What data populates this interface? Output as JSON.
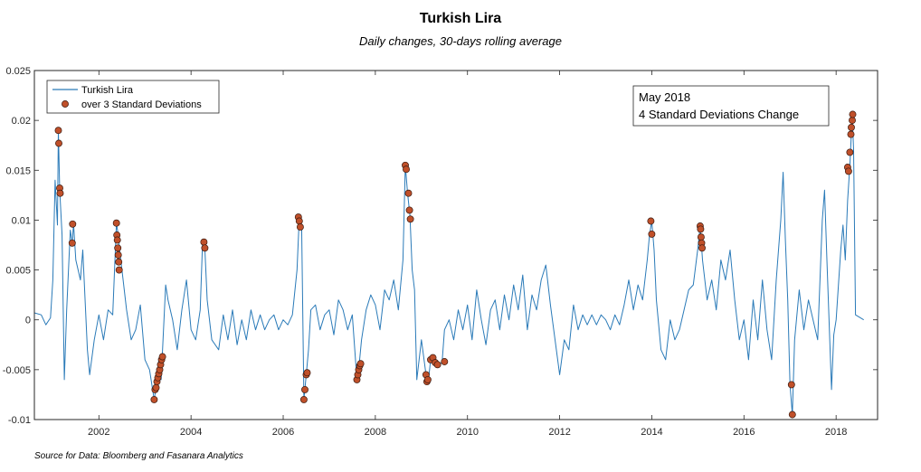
{
  "chart_data": {
    "type": "line",
    "title": "Turkish Lira",
    "subtitle": "Daily changes, 30-days rolling average",
    "source": "Source for Data: Bloomberg and Fasanara Analytics",
    "xlabel": "",
    "ylabel": "",
    "xlim": [
      2000.6,
      2018.9
    ],
    "ylim": [
      -0.01,
      0.025
    ],
    "x_ticks": [
      2002,
      2004,
      2006,
      2008,
      2010,
      2012,
      2014,
      2016,
      2018
    ],
    "y_ticks": [
      -0.01,
      -0.005,
      0,
      0.005,
      0.01,
      0.015,
      0.02,
      0.025
    ],
    "y_tick_labels": [
      "-0.01",
      "-0.005",
      "0",
      "0.005",
      "0.01",
      "0.015",
      "0.02",
      "0.025"
    ],
    "legend_placement": "top-left",
    "annotation": {
      "lines": [
        "May 2018",
        "4 Standard Deviations Change"
      ],
      "placement": "top-right"
    },
    "colors": {
      "line": "#2a7ab8",
      "marker_fill": "#c0502a",
      "marker_edge": "#3a1a10",
      "axis": "#262626"
    },
    "series": [
      {
        "name": "Turkish Lira",
        "kind": "line",
        "points": [
          [
            2000.6,
            0.0007
          ],
          [
            2000.75,
            0.0005
          ],
          [
            2000.85,
            -0.0005
          ],
          [
            2000.95,
            0.0002
          ],
          [
            2001.0,
            0.004
          ],
          [
            2001.05,
            0.014
          ],
          [
            2001.1,
            0.0095
          ],
          [
            2001.12,
            0.019
          ],
          [
            2001.15,
            0.013
          ],
          [
            2001.2,
            0.0085
          ],
          [
            2001.25,
            -0.006
          ],
          [
            2001.3,
            0.001
          ],
          [
            2001.38,
            0.009
          ],
          [
            2001.42,
            0.0077
          ],
          [
            2001.45,
            0.0096
          ],
          [
            2001.5,
            0.006
          ],
          [
            2001.6,
            0.004
          ],
          [
            2001.65,
            0.007
          ],
          [
            2001.75,
            -0.003
          ],
          [
            2001.8,
            -0.0055
          ],
          [
            2001.9,
            -0.002
          ],
          [
            2002.0,
            0.0005
          ],
          [
            2002.1,
            -0.002
          ],
          [
            2002.2,
            0.001
          ],
          [
            2002.3,
            0.0005
          ],
          [
            2002.38,
            0.0097
          ],
          [
            2002.42,
            0.0085
          ],
          [
            2002.45,
            0.007
          ],
          [
            2002.5,
            0.005
          ],
          [
            2002.6,
            0.001
          ],
          [
            2002.7,
            -0.002
          ],
          [
            2002.8,
            -0.001
          ],
          [
            2002.9,
            0.0015
          ],
          [
            2003.0,
            -0.004
          ],
          [
            2003.1,
            -0.005
          ],
          [
            2003.2,
            -0.008
          ],
          [
            2003.25,
            -0.0065
          ],
          [
            2003.3,
            -0.004
          ],
          [
            2003.35,
            -0.006
          ],
          [
            2003.45,
            0.0035
          ],
          [
            2003.5,
            0.002
          ],
          [
            2003.6,
            0.0
          ],
          [
            2003.7,
            -0.003
          ],
          [
            2003.8,
            0.001
          ],
          [
            2003.9,
            0.004
          ],
          [
            2004.0,
            -0.001
          ],
          [
            2004.1,
            -0.002
          ],
          [
            2004.2,
            0.001
          ],
          [
            2004.25,
            0.0078
          ],
          [
            2004.3,
            0.0072
          ],
          [
            2004.35,
            0.002
          ],
          [
            2004.45,
            -0.002
          ],
          [
            2004.6,
            -0.003
          ],
          [
            2004.7,
            0.0005
          ],
          [
            2004.8,
            -0.002
          ],
          [
            2004.9,
            0.001
          ],
          [
            2005.0,
            -0.0025
          ],
          [
            2005.1,
            0.0
          ],
          [
            2005.2,
            -0.002
          ],
          [
            2005.3,
            0.001
          ],
          [
            2005.4,
            -0.001
          ],
          [
            2005.5,
            0.0005
          ],
          [
            2005.6,
            -0.001
          ],
          [
            2005.7,
            0.0
          ],
          [
            2005.8,
            0.0005
          ],
          [
            2005.9,
            -0.001
          ],
          [
            2006.0,
            0.0
          ],
          [
            2006.1,
            -0.0005
          ],
          [
            2006.2,
            0.0005
          ],
          [
            2006.3,
            0.005
          ],
          [
            2006.35,
            0.0103
          ],
          [
            2006.4,
            0.0095
          ],
          [
            2006.45,
            -0.008
          ],
          [
            2006.5,
            -0.0055
          ],
          [
            2006.55,
            -0.003
          ],
          [
            2006.6,
            0.001
          ],
          [
            2006.7,
            0.0015
          ],
          [
            2006.8,
            -0.001
          ],
          [
            2006.9,
            0.0005
          ],
          [
            2007.0,
            0.001
          ],
          [
            2007.1,
            -0.0015
          ],
          [
            2007.2,
            0.002
          ],
          [
            2007.3,
            0.001
          ],
          [
            2007.4,
            -0.001
          ],
          [
            2007.5,
            0.0005
          ],
          [
            2007.6,
            -0.006
          ],
          [
            2007.65,
            -0.0045
          ],
          [
            2007.7,
            -0.002
          ],
          [
            2007.8,
            0.001
          ],
          [
            2007.9,
            0.0025
          ],
          [
            2008.0,
            0.0015
          ],
          [
            2008.1,
            -0.001
          ],
          [
            2008.2,
            0.003
          ],
          [
            2008.3,
            0.002
          ],
          [
            2008.4,
            0.004
          ],
          [
            2008.5,
            0.001
          ],
          [
            2008.6,
            0.006
          ],
          [
            2008.65,
            0.0155
          ],
          [
            2008.7,
            0.0127
          ],
          [
            2008.75,
            0.0105
          ],
          [
            2008.8,
            0.005
          ],
          [
            2008.85,
            0.003
          ],
          [
            2008.9,
            -0.006
          ],
          [
            2009.0,
            -0.002
          ],
          [
            2009.1,
            -0.0055
          ],
          [
            2009.15,
            -0.0062
          ],
          [
            2009.2,
            -0.004
          ],
          [
            2009.3,
            -0.0045
          ],
          [
            2009.4,
            -0.0045
          ],
          [
            2009.45,
            -0.0042
          ],
          [
            2009.5,
            -0.001
          ],
          [
            2009.6,
            0.0
          ],
          [
            2009.7,
            -0.002
          ],
          [
            2009.8,
            0.001
          ],
          [
            2009.9,
            -0.001
          ],
          [
            2010.0,
            0.0015
          ],
          [
            2010.1,
            -0.002
          ],
          [
            2010.2,
            0.003
          ],
          [
            2010.3,
            0.0
          ],
          [
            2010.4,
            -0.0025
          ],
          [
            2010.5,
            0.001
          ],
          [
            2010.6,
            0.002
          ],
          [
            2010.7,
            -0.001
          ],
          [
            2010.8,
            0.0025
          ],
          [
            2010.9,
            0.0
          ],
          [
            2011.0,
            0.0035
          ],
          [
            2011.1,
            0.001
          ],
          [
            2011.2,
            0.0045
          ],
          [
            2011.3,
            -0.001
          ],
          [
            2011.4,
            0.0025
          ],
          [
            2011.5,
            0.001
          ],
          [
            2011.6,
            0.004
          ],
          [
            2011.7,
            0.0055
          ],
          [
            2011.8,
            0.0015
          ],
          [
            2011.9,
            -0.002
          ],
          [
            2012.0,
            -0.0055
          ],
          [
            2012.1,
            -0.002
          ],
          [
            2012.2,
            -0.003
          ],
          [
            2012.3,
            0.0015
          ],
          [
            2012.4,
            -0.001
          ],
          [
            2012.5,
            0.0005
          ],
          [
            2012.6,
            -0.0005
          ],
          [
            2012.7,
            0.0005
          ],
          [
            2012.8,
            -0.0005
          ],
          [
            2012.9,
            0.0005
          ],
          [
            2013.0,
            0.0
          ],
          [
            2013.1,
            -0.001
          ],
          [
            2013.2,
            0.0005
          ],
          [
            2013.3,
            -0.0005
          ],
          [
            2013.4,
            0.0015
          ],
          [
            2013.5,
            0.004
          ],
          [
            2013.6,
            0.001
          ],
          [
            2013.7,
            0.0035
          ],
          [
            2013.8,
            0.002
          ],
          [
            2013.9,
            0.006
          ],
          [
            2013.95,
            0.0085
          ],
          [
            2014.0,
            0.0099
          ],
          [
            2014.05,
            0.007
          ],
          [
            2014.1,
            0.002
          ],
          [
            2014.2,
            -0.003
          ],
          [
            2014.3,
            -0.004
          ],
          [
            2014.4,
            0.0
          ],
          [
            2014.5,
            -0.002
          ],
          [
            2014.6,
            -0.001
          ],
          [
            2014.7,
            0.001
          ],
          [
            2014.8,
            0.003
          ],
          [
            2014.9,
            0.0035
          ],
          [
            2015.0,
            0.0072
          ],
          [
            2015.05,
            0.0094
          ],
          [
            2015.1,
            0.006
          ],
          [
            2015.2,
            0.002
          ],
          [
            2015.3,
            0.004
          ],
          [
            2015.4,
            0.001
          ],
          [
            2015.5,
            0.006
          ],
          [
            2015.6,
            0.004
          ],
          [
            2015.7,
            0.007
          ],
          [
            2015.8,
            0.002
          ],
          [
            2015.9,
            -0.002
          ],
          [
            2016.0,
            0.0
          ],
          [
            2016.1,
            -0.004
          ],
          [
            2016.2,
            0.002
          ],
          [
            2016.3,
            -0.002
          ],
          [
            2016.4,
            0.004
          ],
          [
            2016.5,
            -0.001
          ],
          [
            2016.6,
            -0.004
          ],
          [
            2016.7,
            0.004
          ],
          [
            2016.8,
            0.01
          ],
          [
            2016.85,
            0.0148
          ],
          [
            2016.9,
            0.008
          ],
          [
            2016.95,
            0.002
          ],
          [
            2017.0,
            -0.0065
          ],
          [
            2017.05,
            -0.0095
          ],
          [
            2017.1,
            -0.002
          ],
          [
            2017.2,
            0.003
          ],
          [
            2017.3,
            -0.001
          ],
          [
            2017.4,
            0.002
          ],
          [
            2017.5,
            0.0
          ],
          [
            2017.6,
            -0.002
          ],
          [
            2017.7,
            0.01
          ],
          [
            2017.75,
            0.013
          ],
          [
            2017.8,
            0.006
          ],
          [
            2017.9,
            -0.007
          ],
          [
            2017.95,
            -0.0015
          ],
          [
            2018.0,
            0.0
          ],
          [
            2018.1,
            0.007
          ],
          [
            2018.15,
            0.0095
          ],
          [
            2018.2,
            0.006
          ],
          [
            2018.25,
            0.012
          ],
          [
            2018.3,
            0.0155
          ],
          [
            2018.35,
            0.0206
          ],
          [
            2018.38,
            0.017
          ],
          [
            2018.42,
            0.0005
          ],
          [
            2018.6,
            0.0
          ]
        ]
      },
      {
        "name": "over 3 Standard Deviations",
        "kind": "scatter",
        "points": [
          [
            2001.12,
            0.019
          ],
          [
            2001.13,
            0.0177
          ],
          [
            2001.15,
            0.0132
          ],
          [
            2001.16,
            0.0127
          ],
          [
            2001.42,
            0.0077
          ],
          [
            2001.43,
            0.0096
          ],
          [
            2002.38,
            0.0097
          ],
          [
            2002.39,
            0.0085
          ],
          [
            2002.4,
            0.008
          ],
          [
            2002.41,
            0.0072
          ],
          [
            2002.42,
            0.0065
          ],
          [
            2002.43,
            0.0058
          ],
          [
            2002.44,
            0.005
          ],
          [
            2003.2,
            -0.008
          ],
          [
            2003.22,
            -0.007
          ],
          [
            2003.24,
            -0.0068
          ],
          [
            2003.26,
            -0.0062
          ],
          [
            2003.28,
            -0.0058
          ],
          [
            2003.3,
            -0.0054
          ],
          [
            2003.32,
            -0.005
          ],
          [
            2003.34,
            -0.0045
          ],
          [
            2003.36,
            -0.004
          ],
          [
            2003.38,
            -0.0037
          ],
          [
            2004.28,
            0.0078
          ],
          [
            2004.3,
            0.0072
          ],
          [
            2006.33,
            0.0103
          ],
          [
            2006.35,
            0.0099
          ],
          [
            2006.37,
            0.0093
          ],
          [
            2006.45,
            -0.008
          ],
          [
            2006.47,
            -0.007
          ],
          [
            2006.5,
            -0.0055
          ],
          [
            2006.52,
            -0.0053
          ],
          [
            2007.6,
            -0.006
          ],
          [
            2007.62,
            -0.0055
          ],
          [
            2007.64,
            -0.005
          ],
          [
            2007.66,
            -0.0046
          ],
          [
            2007.68,
            -0.0044
          ],
          [
            2008.65,
            0.0155
          ],
          [
            2008.67,
            0.0151
          ],
          [
            2008.72,
            0.0127
          ],
          [
            2008.74,
            0.011
          ],
          [
            2008.76,
            0.0101
          ],
          [
            2009.1,
            -0.0055
          ],
          [
            2009.12,
            -0.0062
          ],
          [
            2009.14,
            -0.006
          ],
          [
            2009.2,
            -0.004
          ],
          [
            2009.25,
            -0.0038
          ],
          [
            2009.3,
            -0.0043
          ],
          [
            2009.35,
            -0.0045
          ],
          [
            2009.5,
            -0.0042
          ],
          [
            2013.98,
            0.0099
          ],
          [
            2014.0,
            0.0086
          ],
          [
            2015.05,
            0.0094
          ],
          [
            2015.06,
            0.0091
          ],
          [
            2015.07,
            0.0083
          ],
          [
            2015.08,
            0.0077
          ],
          [
            2015.09,
            0.0072
          ],
          [
            2017.03,
            -0.0065
          ],
          [
            2017.05,
            -0.0095
          ],
          [
            2018.25,
            0.0153
          ],
          [
            2018.27,
            0.0149
          ],
          [
            2018.3,
            0.0168
          ],
          [
            2018.32,
            0.0186
          ],
          [
            2018.33,
            0.0193
          ],
          [
            2018.35,
            0.02
          ],
          [
            2018.36,
            0.0206
          ]
        ]
      }
    ]
  }
}
